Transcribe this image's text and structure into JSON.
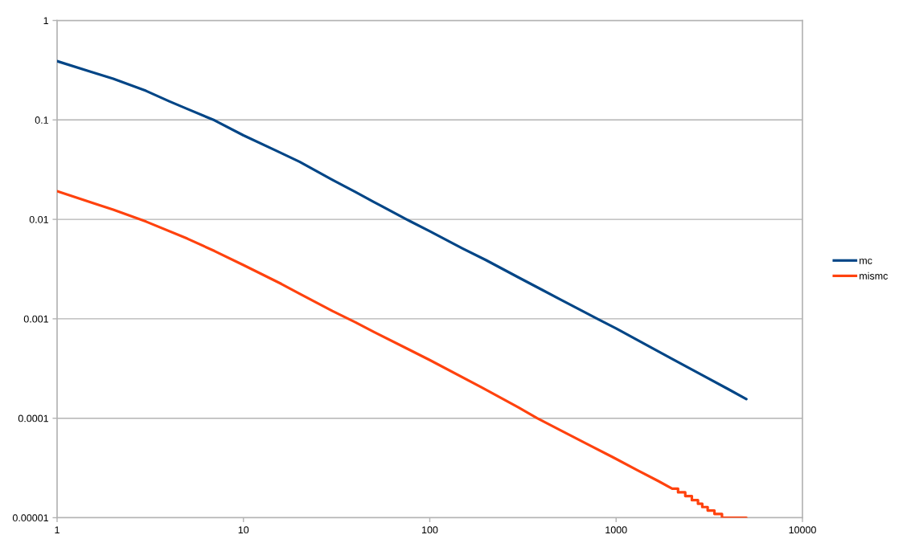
{
  "chart_data": {
    "type": "line",
    "log": "xy",
    "grid": "y",
    "legend": "right",
    "line_style": "solid",
    "marker": "none",
    "xlim": [
      1,
      10000
    ],
    "xticks": [
      1,
      10,
      100,
      1000,
      10000
    ],
    "ylim": [
      1e-05,
      1
    ],
    "yticks": [
      1,
      0.1,
      0.01,
      0.001,
      0.0001,
      {
        "value": 1e-05,
        "label": "0.00001"
      }
    ],
    "series": [
      {
        "name": "mc",
        "color": "#004586",
        "x": [
          1,
          1.5,
          2,
          3,
          4,
          5,
          7,
          10,
          15,
          20,
          30,
          40,
          50,
          75,
          100,
          150,
          200,
          300,
          400,
          500,
          800,
          1000,
          1500,
          2000,
          3000,
          4000,
          5000
        ],
        "values": [
          0.39,
          0.307,
          0.26,
          0.196,
          0.154,
          0.129,
          0.099,
          0.07,
          0.049,
          0.038,
          0.025,
          0.0188,
          0.015,
          0.01,
          0.0076,
          0.0051,
          0.0039,
          0.0026,
          0.00196,
          0.00157,
          0.00099,
          0.0008,
          0.00053,
          0.000395,
          0.000262,
          0.000196,
          0.000156
        ]
      },
      {
        "name": "mismc",
        "color": "#ff420e",
        "x": [
          1,
          2,
          3,
          5,
          7,
          10,
          16,
          20,
          30,
          40,
          50,
          100,
          191,
          300,
          377,
          500,
          700,
          975,
          1300,
          1680,
          2000,
          2150,
          2150,
          2350,
          2350,
          2550,
          2550,
          2750,
          2750,
          2900,
          2900,
          3100,
          3100,
          3370,
          3370,
          3700,
          3700,
          5000
        ],
        "values": [
          0.0192,
          0.0125,
          0.0095,
          0.0064,
          0.0048,
          0.00347,
          0.00224,
          0.00179,
          0.0012,
          0.00092,
          0.00074,
          0.000385,
          0.000203,
          0.000128,
          0.0001,
          7.6e-05,
          5.5e-05,
          4e-05,
          3e-05,
          2.34e-05,
          1.96e-05,
          1.96e-05,
          1.8e-05,
          1.8e-05,
          1.65e-05,
          1.65e-05,
          1.5e-05,
          1.5e-05,
          1.38e-05,
          1.38e-05,
          1.28e-05,
          1.28e-05,
          1.18e-05,
          1.18e-05,
          1.09e-05,
          1.09e-05,
          1e-05,
          1e-05
        ]
      }
    ]
  }
}
